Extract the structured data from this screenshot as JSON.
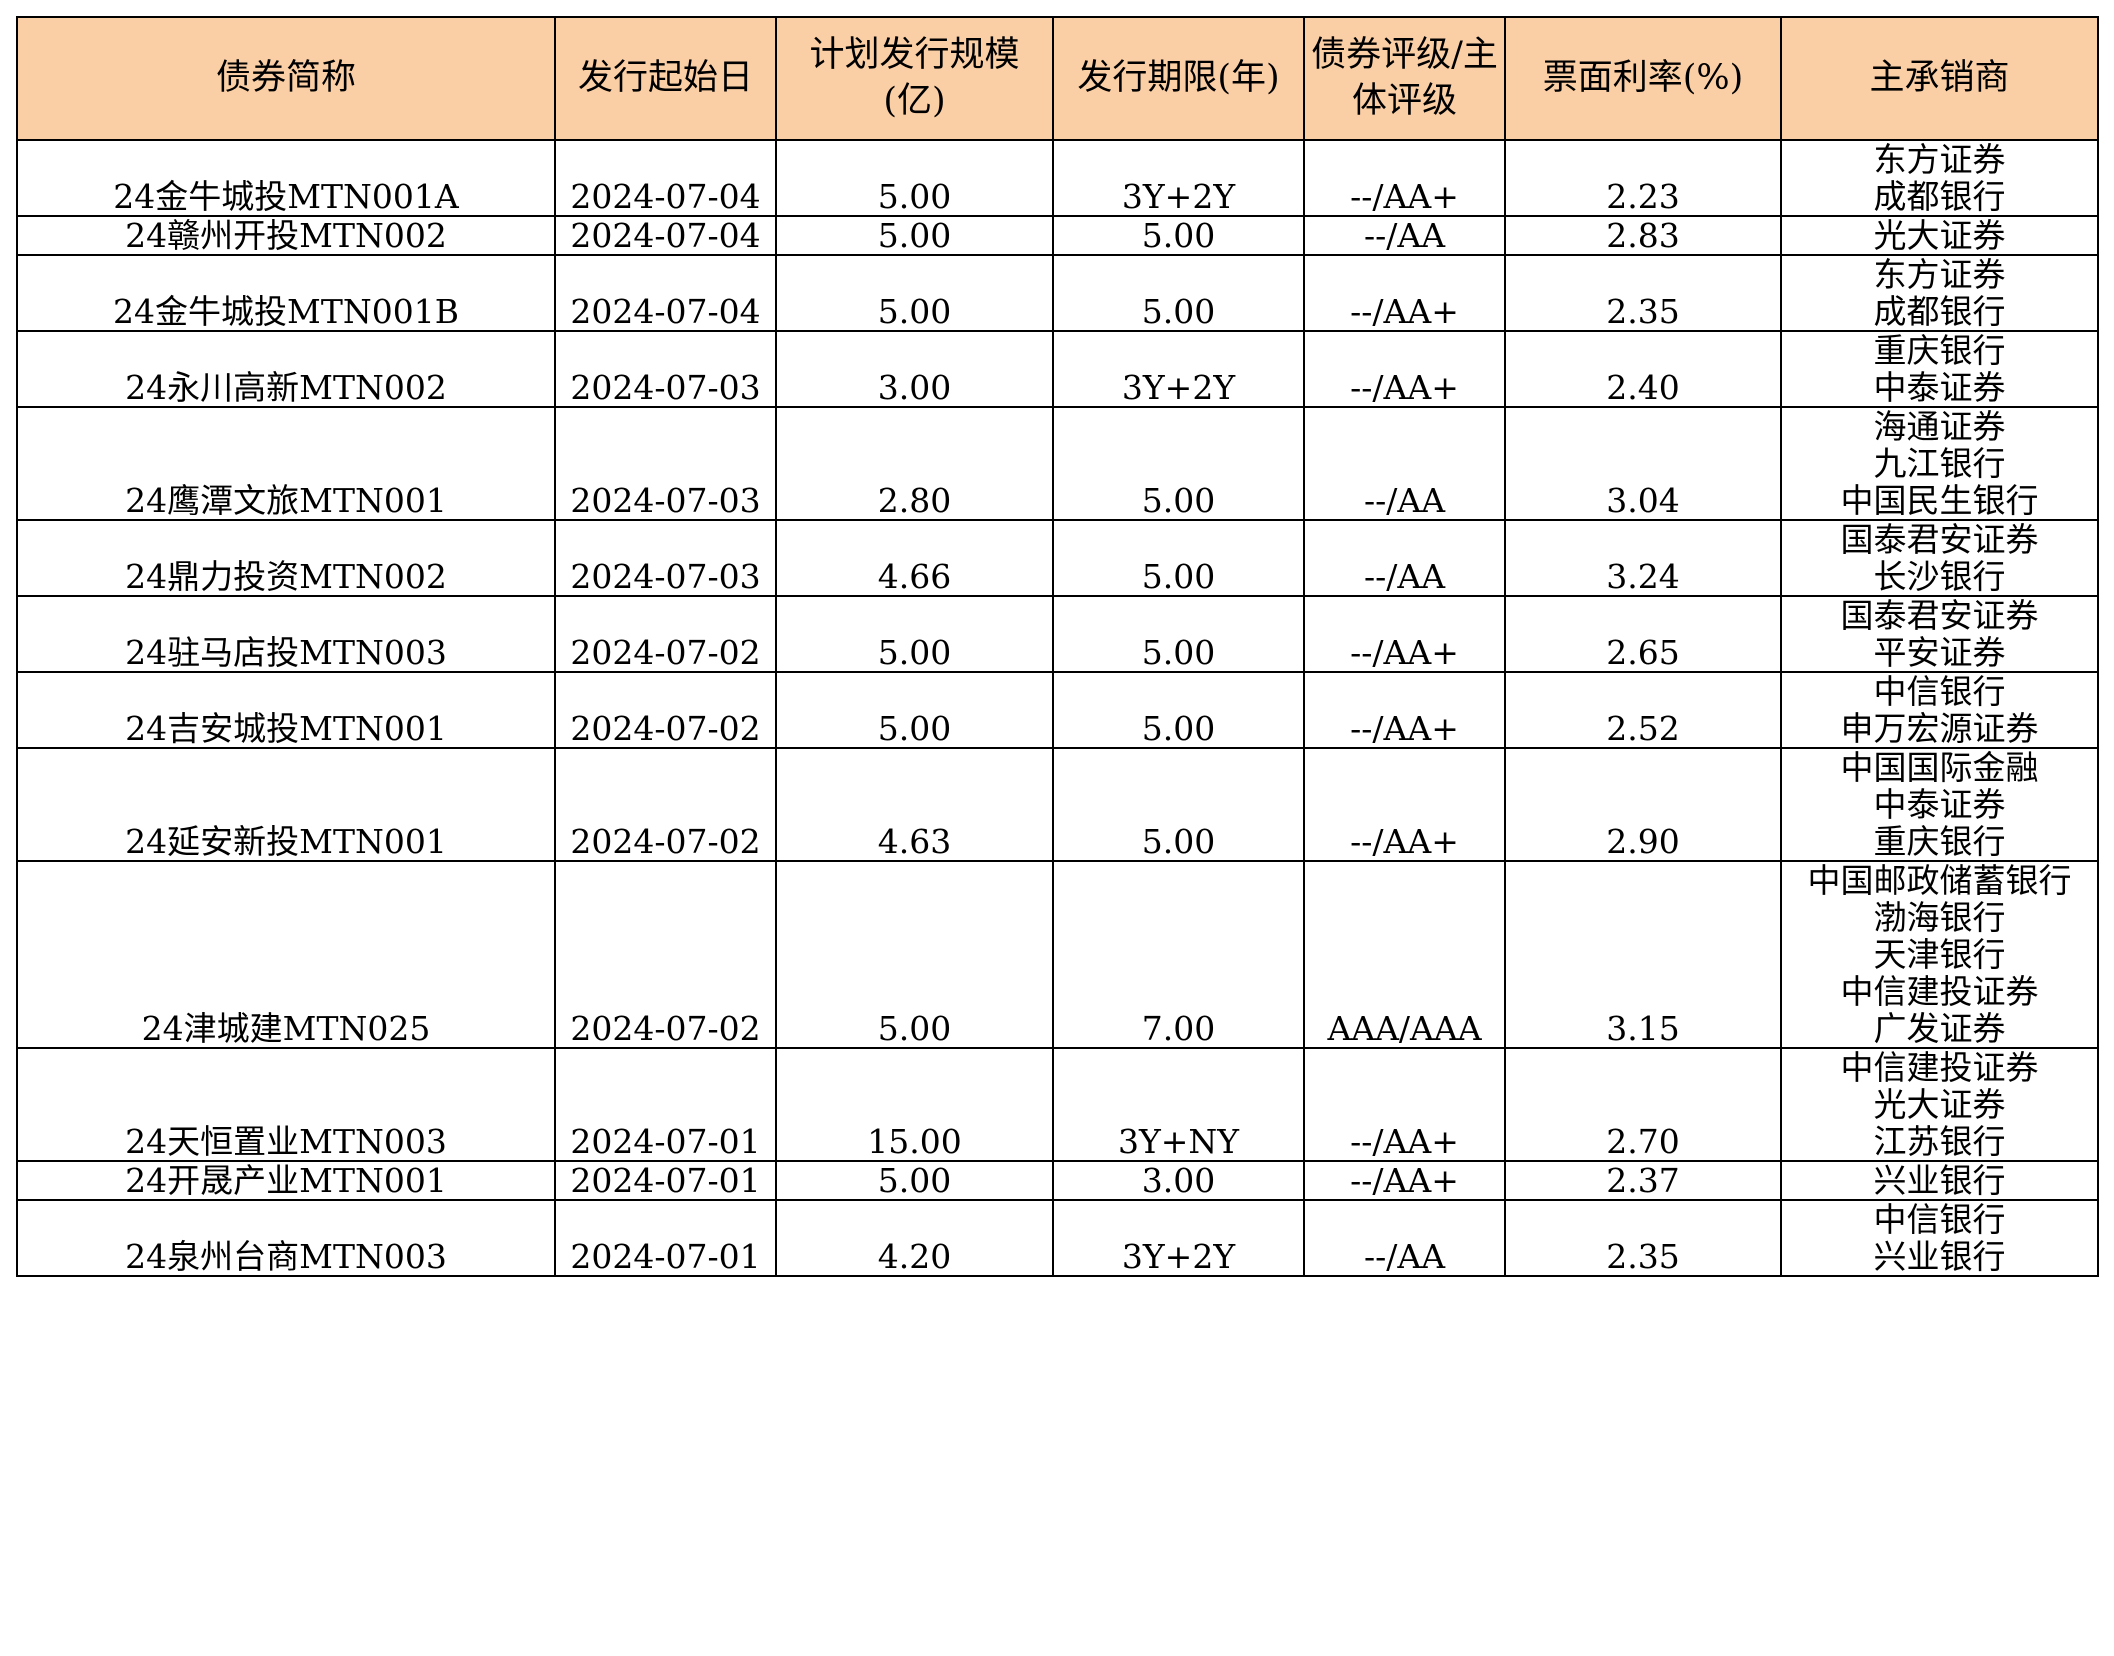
{
  "table": {
    "headers": [
      "债券简称",
      "发行起始日",
      "计划发行规模(亿)",
      "发行期限(年)",
      "债券评级/主体评级",
      "票面利率(%)",
      "主承销商"
    ],
    "rows": [
      {
        "name": "24金牛城投MTN001A",
        "date": "2024-07-04",
        "size": "5.00",
        "term": "3Y+2Y",
        "rating": "--/AA+",
        "rate": "2.23",
        "underwriters": [
          "东方证券",
          "成都银行"
        ]
      },
      {
        "name": "24赣州开投MTN002",
        "date": "2024-07-04",
        "size": "5.00",
        "term": "5.00",
        "rating": "--/AA",
        "rate": "2.83",
        "underwriters": [
          "光大证券"
        ]
      },
      {
        "name": "24金牛城投MTN001B",
        "date": "2024-07-04",
        "size": "5.00",
        "term": "5.00",
        "rating": "--/AA+",
        "rate": "2.35",
        "underwriters": [
          "东方证券",
          "成都银行"
        ]
      },
      {
        "name": "24永川高新MTN002",
        "date": "2024-07-03",
        "size": "3.00",
        "term": "3Y+2Y",
        "rating": "--/AA+",
        "rate": "2.40",
        "underwriters": [
          "重庆银行",
          "中泰证券"
        ]
      },
      {
        "name": "24鹰潭文旅MTN001",
        "date": "2024-07-03",
        "size": "2.80",
        "term": "5.00",
        "rating": "--/AA",
        "rate": "3.04",
        "underwriters": [
          "海通证券",
          "九江银行",
          "中国民生银行"
        ]
      },
      {
        "name": "24鼎力投资MTN002",
        "date": "2024-07-03",
        "size": "4.66",
        "term": "5.00",
        "rating": "--/AA",
        "rate": "3.24",
        "underwriters": [
          "国泰君安证券",
          "长沙银行"
        ]
      },
      {
        "name": "24驻马店投MTN003",
        "date": "2024-07-02",
        "size": "5.00",
        "term": "5.00",
        "rating": "--/AA+",
        "rate": "2.65",
        "underwriters": [
          "国泰君安证券",
          "平安证券"
        ]
      },
      {
        "name": "24吉安城投MTN001",
        "date": "2024-07-02",
        "size": "5.00",
        "term": "5.00",
        "rating": "--/AA+",
        "rate": "2.52",
        "underwriters": [
          "中信银行",
          "申万宏源证券"
        ]
      },
      {
        "name": "24延安新投MTN001",
        "date": "2024-07-02",
        "size": "4.63",
        "term": "5.00",
        "rating": "--/AA+",
        "rate": "2.90",
        "underwriters": [
          "中国国际金融",
          "中泰证券",
          "重庆银行"
        ]
      },
      {
        "name": "24津城建MTN025",
        "date": "2024-07-02",
        "size": "5.00",
        "term": "7.00",
        "rating": "AAA/AAA",
        "rate": "3.15",
        "underwriters": [
          "中国邮政储蓄银行",
          "渤海银行",
          "天津银行",
          "中信建投证券",
          "广发证券"
        ]
      },
      {
        "name": "24天恒置业MTN003",
        "date": "2024-07-01",
        "size": "15.00",
        "term": "3Y+NY",
        "rating": "--/AA+",
        "rate": "2.70",
        "underwriters": [
          "中信建投证券",
          "光大证券",
          "江苏银行"
        ]
      },
      {
        "name": "24开晟产业MTN001",
        "date": "2024-07-01",
        "size": "5.00",
        "term": "3.00",
        "rating": "--/AA+",
        "rate": "2.37",
        "underwriters": [
          "兴业银行"
        ]
      },
      {
        "name": "24泉州台商MTN003",
        "date": "2024-07-01",
        "size": "4.20",
        "term": "3Y+2Y",
        "rating": "--/AA",
        "rate": "2.35",
        "underwriters": [
          "中信银行",
          "兴业银行"
        ]
      }
    ]
  },
  "colors": {
    "header_bg": "#fbcfa6",
    "border": "#000000"
  }
}
